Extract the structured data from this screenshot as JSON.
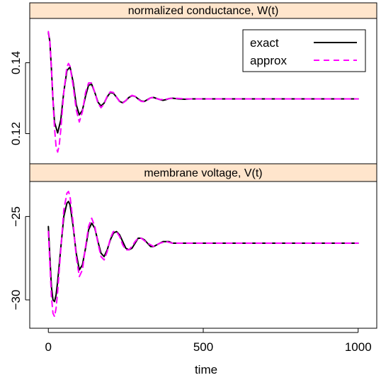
{
  "chart_data": {
    "type": "line",
    "xlabel": "time",
    "xlim": [
      -60,
      1060
    ],
    "xticks": [
      0,
      500,
      1000
    ],
    "xtick_labels": [
      "0",
      "500",
      "1000"
    ],
    "strip_color": "#ffe5cc",
    "legend": {
      "position": "top-right",
      "entries": [
        {
          "label": "exact",
          "color": "#000000",
          "dash": "solid"
        },
        {
          "label": "approx",
          "color": "#ff00ff",
          "dash": "dashed"
        }
      ]
    },
    "panels": [
      {
        "title": "normalized conductance, W(t)",
        "ylim": [
          0.1115,
          0.1525
        ],
        "yticks": [
          0.12,
          0.14
        ],
        "ytick_labels": [
          "0.12",
          "0.14"
        ],
        "series": [
          {
            "name": "exact",
            "color": "#000000",
            "x": [
              0,
              5,
              10,
              15,
              20,
              30,
              40,
              50,
              60,
              70,
              80,
              90,
              100,
              110,
              120,
              130,
              140,
              150,
              160,
              170,
              180,
              190,
              200,
              210,
              220,
              230,
              240,
              250,
              260,
              270,
              280,
              290,
              300,
              310,
              320,
              330,
              340,
              350,
              360,
              370,
              380,
              390,
              400,
              420,
              440,
              460,
              480,
              500,
              550,
              600,
              700,
              800,
              900,
              1000
            ],
            "y": [
              0.1485,
              0.146,
              0.1383,
              0.1295,
              0.1232,
              0.1202,
              0.1238,
              0.1318,
              0.1378,
              0.1388,
              0.1345,
              0.1282,
              0.1253,
              0.1266,
              0.1306,
              0.1337,
              0.1339,
              0.1316,
              0.1289,
              0.1278,
              0.1286,
              0.1304,
              0.1316,
              0.1314,
              0.1303,
              0.1291,
              0.1287,
              0.1293,
              0.1302,
              0.1307,
              0.1305,
              0.1298,
              0.1292,
              0.1291,
              0.1296,
              0.1301,
              0.1302,
              0.1299,
              0.1296,
              0.1294,
              0.1296,
              0.1299,
              0.13,
              0.1298,
              0.1297,
              0.1298,
              0.1298,
              0.1298,
              0.1298,
              0.1298,
              0.1298,
              0.1298,
              0.1298,
              0.1298
            ]
          },
          {
            "name": "approx",
            "color": "#ff00ff",
            "x": [
              0,
              5,
              10,
              15,
              20,
              25,
              30,
              35,
              40,
              50,
              60,
              65,
              70,
              80,
              90,
              100,
              110,
              120,
              130,
              140,
              150,
              160,
              170,
              180,
              190,
              200,
              210,
              220,
              230,
              240,
              250,
              260,
              270,
              280,
              290,
              300,
              310,
              320,
              330,
              340,
              350,
              360,
              380,
              400,
              450,
              500,
              600,
              700,
              800,
              900,
              1000
            ],
            "y": [
              0.1488,
              0.146,
              0.1385,
              0.1293,
              0.1215,
              0.1163,
              0.1148,
              0.1167,
              0.121,
              0.1318,
              0.1388,
              0.1398,
              0.139,
              0.1335,
              0.1268,
              0.1233,
              0.1262,
              0.1316,
              0.1343,
              0.1343,
              0.1316,
              0.1286,
              0.1273,
              0.1284,
              0.1306,
              0.1318,
              0.1316,
              0.1303,
              0.129,
              0.1286,
              0.1293,
              0.1303,
              0.1308,
              0.1305,
              0.1297,
              0.1291,
              0.129,
              0.1295,
              0.1301,
              0.1302,
              0.1299,
              0.1296,
              0.1297,
              0.13,
              0.1298,
              0.1298,
              0.1298,
              0.1298,
              0.1298,
              0.1298,
              0.1298
            ]
          }
        ]
      },
      {
        "title": "membrane voltage, V(t)",
        "ylim": [
          -31.7,
          -22.9
        ],
        "yticks": [
          -30,
          -25
        ],
        "ytick_labels": [
          "−30",
          "−25"
        ],
        "series": [
          {
            "name": "exact",
            "color": "#000000",
            "x": [
              0,
              5,
              10,
              15,
              20,
              25,
              30,
              40,
              50,
              60,
              65,
              70,
              80,
              90,
              100,
              110,
              120,
              130,
              140,
              150,
              160,
              170,
              180,
              190,
              200,
              210,
              220,
              230,
              240,
              250,
              260,
              270,
              280,
              290,
              300,
              310,
              320,
              330,
              340,
              350,
              360,
              370,
              380,
              390,
              400,
              420,
              440,
              460,
              500,
              600,
              700,
              800,
              900,
              1000
            ],
            "y": [
              -25.6,
              -27.4,
              -29.2,
              -30.0,
              -30.1,
              -29.7,
              -28.9,
              -26.9,
              -25.0,
              -24.2,
              -24.1,
              -24.3,
              -25.6,
              -27.2,
              -28.2,
              -27.9,
              -26.9,
              -25.8,
              -25.4,
              -25.7,
              -26.5,
              -27.2,
              -27.4,
              -27.0,
              -26.4,
              -26.0,
              -25.9,
              -26.1,
              -26.5,
              -26.9,
              -27.0,
              -26.9,
              -26.6,
              -26.3,
              -26.3,
              -26.4,
              -26.6,
              -26.8,
              -26.8,
              -26.7,
              -26.6,
              -26.5,
              -26.5,
              -26.5,
              -26.6,
              -26.6,
              -26.6,
              -26.6,
              -26.6,
              -26.6,
              -26.6,
              -26.6,
              -26.6,
              -26.6
            ]
          },
          {
            "name": "approx",
            "color": "#ff00ff",
            "x": [
              0,
              5,
              10,
              15,
              20,
              25,
              30,
              40,
              50,
              60,
              65,
              70,
              80,
              90,
              100,
              110,
              120,
              130,
              140,
              150,
              160,
              170,
              180,
              190,
              200,
              210,
              220,
              230,
              240,
              250,
              260,
              270,
              280,
              290,
              300,
              320,
              340,
              360,
              380,
              400,
              450,
              500,
              600,
              700,
              800,
              900,
              1000
            ],
            "y": [
              -25.9,
              -27.8,
              -29.8,
              -30.8,
              -31.0,
              -30.5,
              -29.5,
              -27.0,
              -24.6,
              -23.6,
              -23.5,
              -23.8,
              -25.4,
              -27.4,
              -28.6,
              -28.2,
              -26.8,
              -25.6,
              -25.1,
              -25.6,
              -26.6,
              -27.4,
              -27.6,
              -27.1,
              -26.3,
              -25.9,
              -25.9,
              -26.2,
              -26.7,
              -27.0,
              -27.0,
              -26.8,
              -26.5,
              -26.3,
              -26.3,
              -26.6,
              -26.8,
              -26.6,
              -26.5,
              -26.6,
              -26.6,
              -26.6,
              -26.6,
              -26.6,
              -26.6,
              -26.6,
              -26.6
            ]
          }
        ]
      }
    ]
  }
}
